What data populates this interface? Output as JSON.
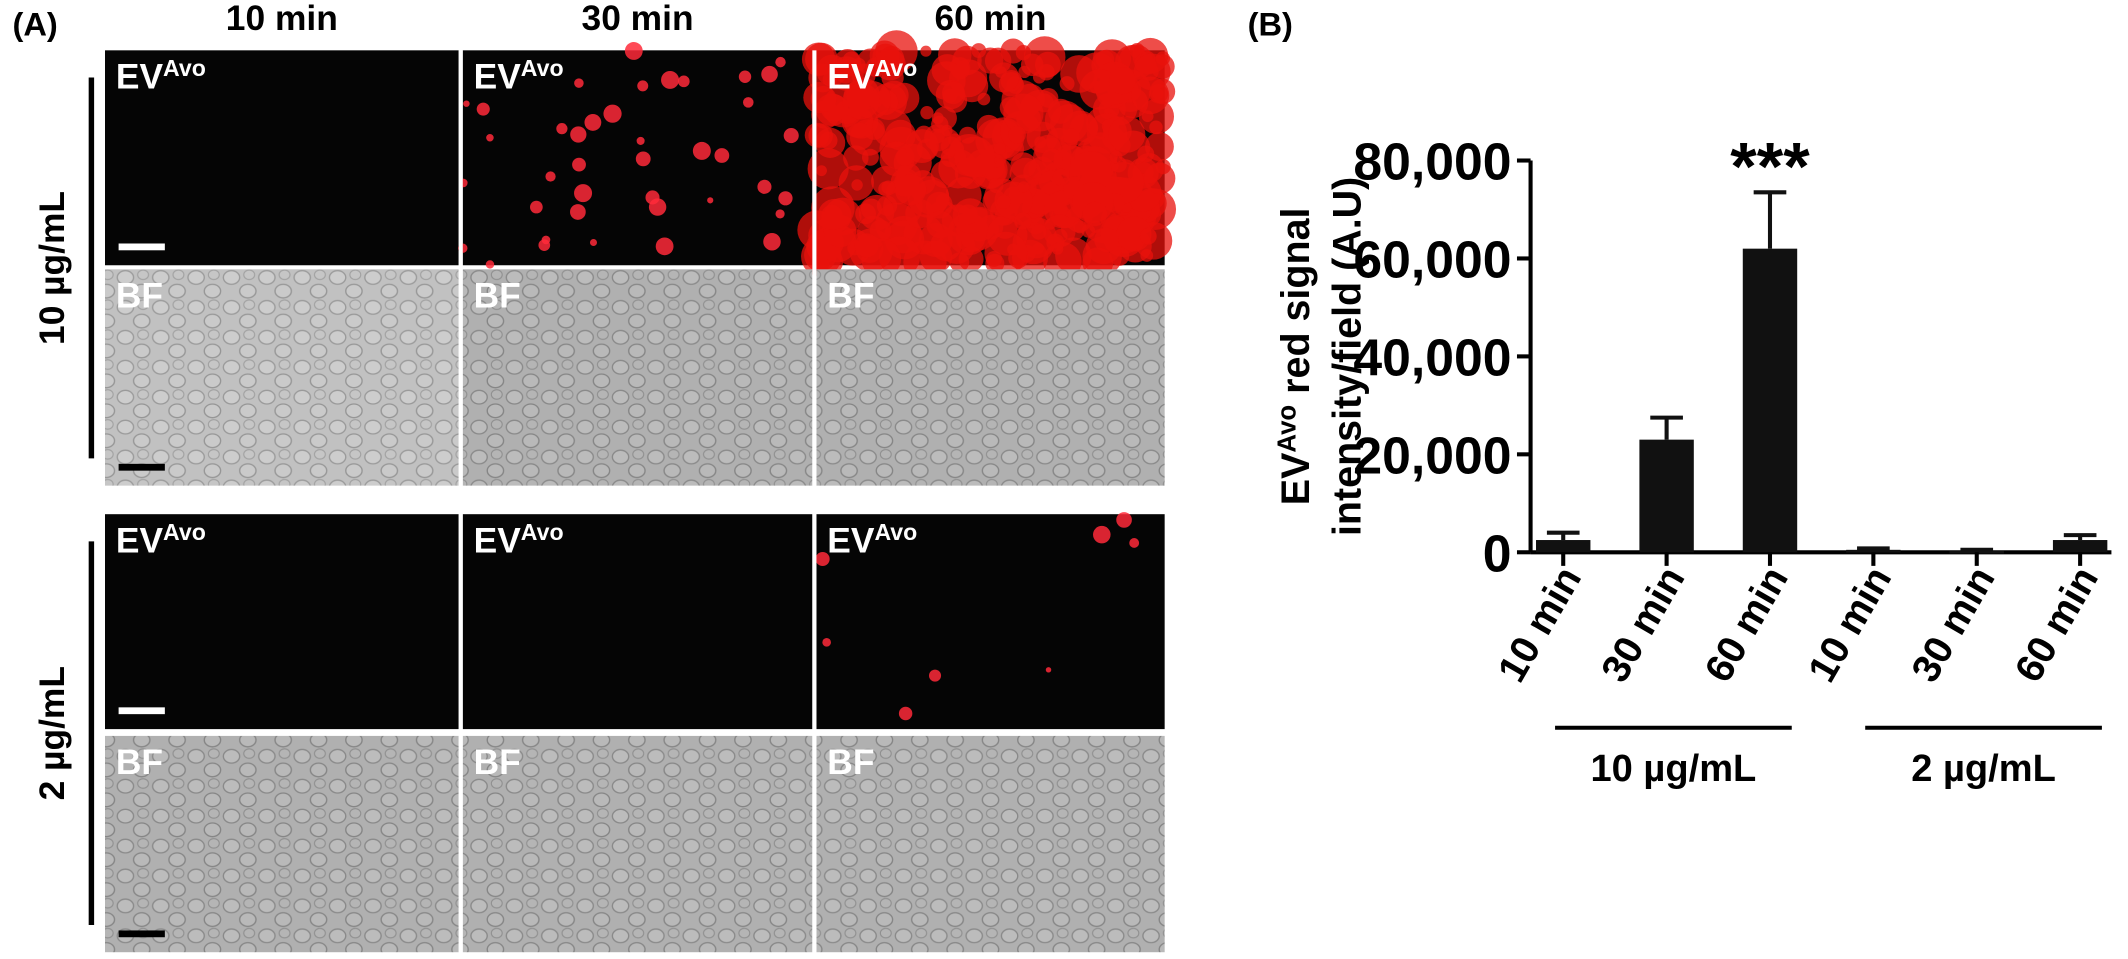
{
  "panel_a": {
    "label": "(A)",
    "columns": [
      "10 min",
      "30 min",
      "60 min"
    ],
    "rows": [
      {
        "label": "10 µg/mL",
        "images": [
          [
            {
              "main": "EV",
              "sup": "Avo"
            },
            {
              "main": "EV",
              "sup": "Avo"
            },
            {
              "main": "EV",
              "sup": "Avo"
            }
          ],
          [
            "BF",
            "BF",
            "BF"
          ]
        ]
      },
      {
        "label": "2 µg/mL",
        "images": [
          [
            {
              "main": "EV",
              "sup": "Avo"
            },
            {
              "main": "EV",
              "sup": "Avo"
            },
            {
              "main": "EV",
              "sup": "Avo"
            }
          ],
          [
            "BF",
            "BF",
            "BF"
          ]
        ]
      }
    ]
  },
  "panel_b_label": "(B)",
  "chart_data": {
    "type": "bar",
    "ylabel": {
      "main": "EV",
      "sup": "Avo",
      "rest": " red signal",
      "line2": "intensity/field (A.U)"
    },
    "categories": [
      "10 min",
      "30 min",
      "60 min",
      "10 min",
      "30 min",
      "60 min"
    ],
    "groups": [
      {
        "name": "10 µg/mL",
        "members": [
          0,
          1,
          2
        ]
      },
      {
        "name": "2 µg/mL",
        "members": [
          3,
          4,
          5
        ]
      }
    ],
    "values": [
      2500,
      23000,
      62000,
      500,
      300,
      2500
    ],
    "errors": [
      1500,
      4500,
      11500,
      300,
      200,
      1000
    ],
    "color": "#111111",
    "annotations": [
      {
        "index": 2,
        "text": "***"
      }
    ],
    "ylim": [
      0,
      80000
    ],
    "yticks": [
      0,
      {
        "value": 20000,
        "label": "20,000"
      },
      {
        "value": 40000,
        "label": "40,000"
      },
      {
        "value": 60000,
        "label": "60,000"
      },
      {
        "value": 80000,
        "label": "80,000"
      }
    ]
  }
}
